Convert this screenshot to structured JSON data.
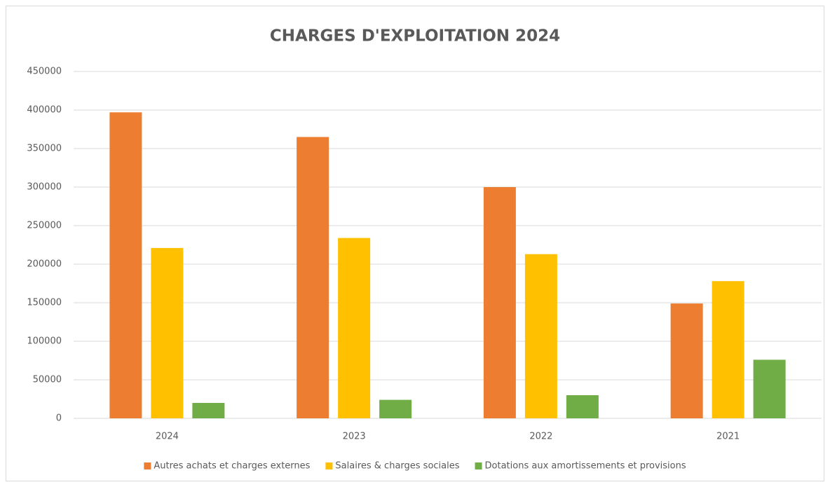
{
  "chart_data": {
    "type": "bar",
    "title": "CHARGES D'EXPLOITATION 2024",
    "categories": [
      "2024",
      "2023",
      "2022",
      "2021"
    ],
    "series": [
      {
        "name": "Autres achats et charges externes",
        "color": "#ed7d31",
        "values": [
          397000,
          365000,
          300000,
          149000
        ]
      },
      {
        "name": "Salaires & charges sociales",
        "color": "#ffc000",
        "values": [
          221000,
          234000,
          213000,
          178000
        ]
      },
      {
        "name": "Dotations aux amortissements et provisions",
        "color": "#70ad47",
        "values": [
          20000,
          24000,
          30000,
          76000
        ]
      }
    ],
    "ylim": [
      0,
      450000
    ],
    "yticks": [
      0,
      50000,
      100000,
      150000,
      200000,
      250000,
      300000,
      350000,
      400000,
      450000
    ],
    "grid": true,
    "legend": "bottom"
  }
}
